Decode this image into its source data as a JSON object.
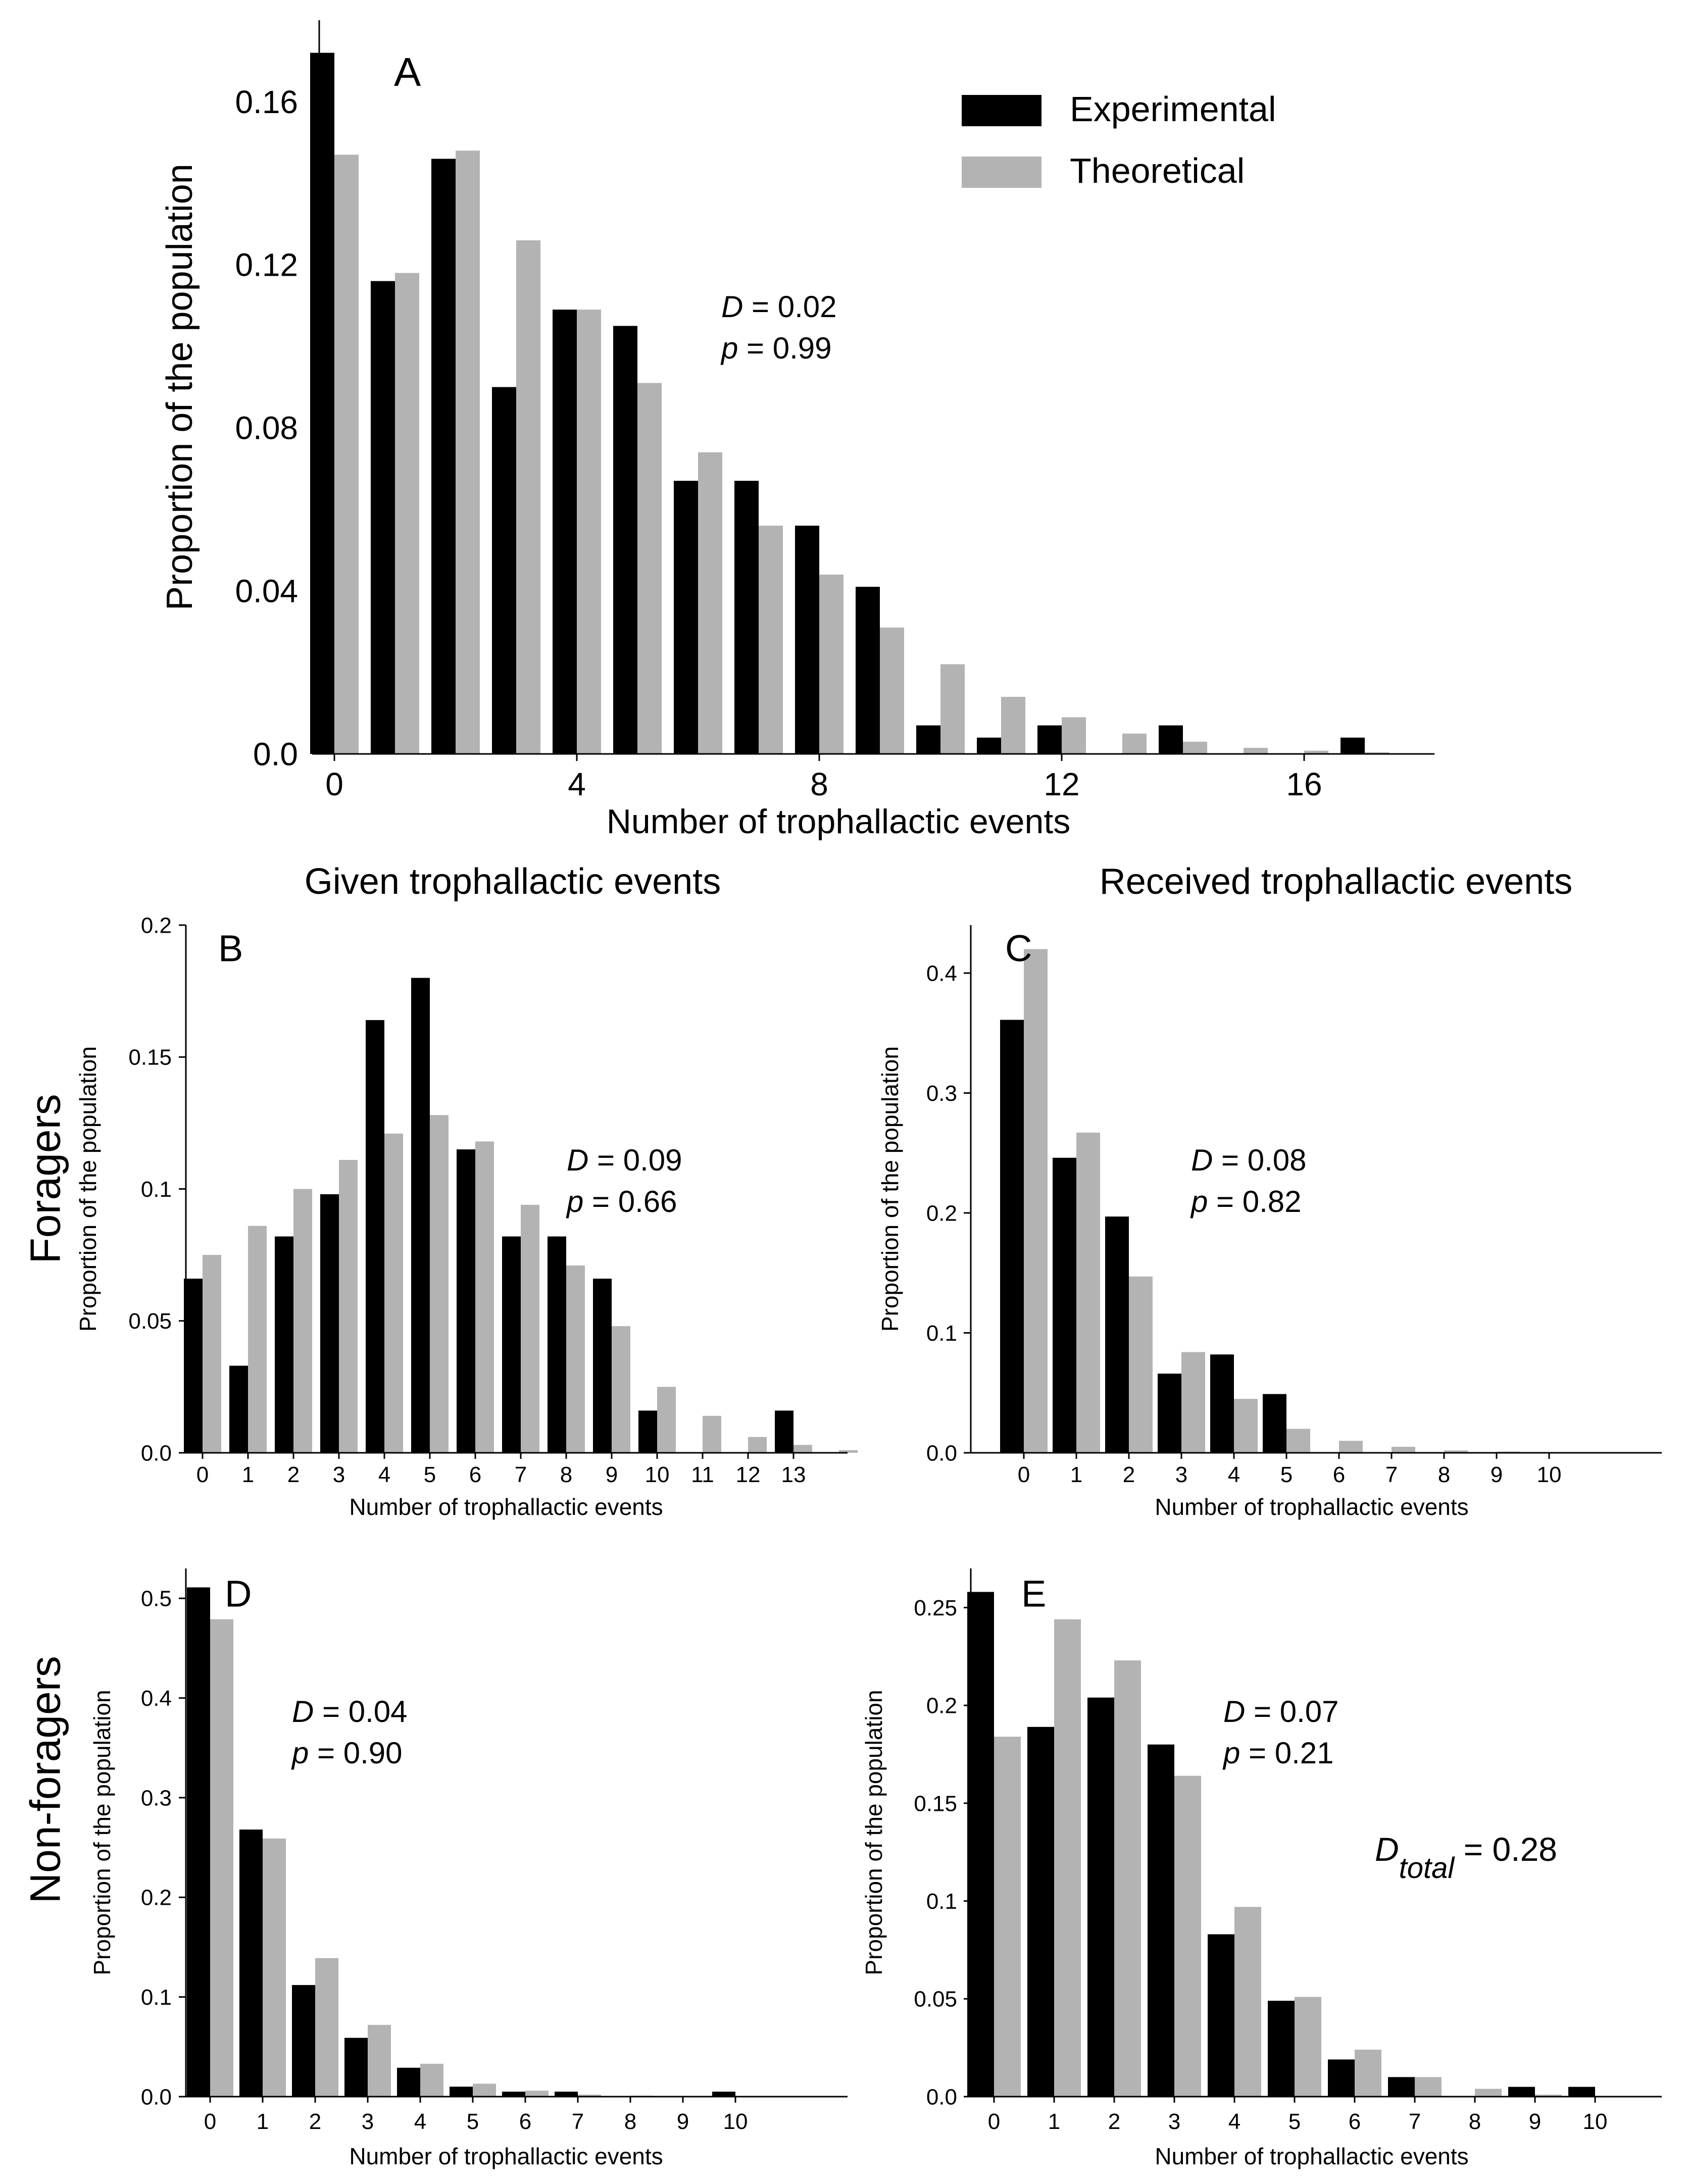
{
  "figure": {
    "column_titles": [
      "Given trophallactic events",
      "Received trophallactic events"
    ],
    "row_labels": [
      "Foragers",
      "Non-foragers"
    ],
    "d_total": {
      "main": "D",
      "sub": "total",
      "value": " = 0.28"
    }
  },
  "chart_data": [
    {
      "id": "A",
      "type": "bar",
      "panel_label": "A",
      "xlabel": "Number of trophallactic events",
      "ylabel": "Proportion of the population",
      "categories": [
        0,
        1,
        2,
        3,
        4,
        5,
        6,
        7,
        8,
        9,
        10,
        11,
        12,
        13,
        14,
        15,
        16,
        17
      ],
      "xticks": [
        0,
        4,
        8,
        12,
        16
      ],
      "ylim": [
        0,
        0.18
      ],
      "yticks": [
        0,
        0.04,
        0.08,
        0.12,
        0.16
      ],
      "ytick_labels": [
        "0.0",
        "0.04",
        "0.08",
        "0.12",
        "0.16"
      ],
      "series": [
        {
          "name": "Experimental",
          "color": "#000000",
          "values": [
            0.172,
            0.116,
            0.146,
            0.09,
            0.109,
            0.105,
            0.067,
            0.067,
            0.056,
            0.041,
            0.007,
            0.004,
            0.007,
            0.0,
            0.007,
            0.0,
            0.0,
            0.004
          ]
        },
        {
          "name": "Theoretical",
          "color": "#b3b3b3",
          "values": [
            0.147,
            0.118,
            0.148,
            0.126,
            0.109,
            0.091,
            0.074,
            0.056,
            0.044,
            0.031,
            0.022,
            0.014,
            0.009,
            0.005,
            0.003,
            0.0015,
            0.0008,
            0.0004
          ]
        }
      ],
      "legend": "top-right",
      "stats": {
        "d_label": "D",
        "d_value": " = 0.02",
        "p_label": "p",
        "p_value": " = 0.99"
      }
    },
    {
      "id": "B",
      "type": "bar",
      "panel_label": "B",
      "xlabel": "Number of trophallactic events",
      "ylabel": "Proportion of the population",
      "categories": [
        0,
        1,
        2,
        3,
        4,
        5,
        6,
        7,
        8,
        9,
        10,
        11,
        12,
        13,
        14
      ],
      "xtick_labels": [
        "0",
        "1",
        "2",
        "3",
        "4",
        "5",
        "6",
        "7",
        "8",
        "9",
        "10",
        "11",
        "12",
        "13"
      ],
      "ylim": [
        0,
        0.2
      ],
      "yticks": [
        0,
        0.05,
        0.1,
        0.15,
        0.2
      ],
      "ytick_labels": [
        "0.0",
        "0.05",
        "0.1",
        "0.15",
        "0.2"
      ],
      "series": [
        {
          "name": "Experimental",
          "color": "#000000",
          "values": [
            0.066,
            0.033,
            0.082,
            0.098,
            0.164,
            0.18,
            0.115,
            0.082,
            0.082,
            0.066,
            0.016,
            0.0,
            0.0,
            0.016,
            0.0
          ]
        },
        {
          "name": "Theoretical",
          "color": "#b3b3b3",
          "values": [
            0.075,
            0.086,
            0.1,
            0.111,
            0.121,
            0.128,
            0.118,
            0.094,
            0.071,
            0.048,
            0.025,
            0.014,
            0.006,
            0.003,
            0.001
          ]
        }
      ],
      "stats": {
        "d_label": "D",
        "d_value": " = 0.09",
        "p_label": "p",
        "p_value": " = 0.66"
      }
    },
    {
      "id": "C",
      "type": "bar",
      "panel_label": "C",
      "xlabel": "Number of trophallactic events",
      "ylabel": "Proportion of the population",
      "categories": [
        0,
        1,
        2,
        3,
        4,
        5,
        6,
        7,
        8,
        9,
        10
      ],
      "xtick_labels": [
        "0",
        "1",
        "2",
        "3",
        "4",
        "5",
        "6",
        "7",
        "8",
        "9",
        "10"
      ],
      "ylim": [
        0,
        0.44
      ],
      "yticks": [
        0,
        0.1,
        0.2,
        0.3,
        0.4
      ],
      "ytick_labels": [
        "0.0",
        "0.1",
        "0.2",
        "0.3",
        "0.4"
      ],
      "series": [
        {
          "name": "Experimental",
          "color": "#000000",
          "values": [
            0.361,
            0.246,
            0.197,
            0.066,
            0.082,
            0.049,
            0.0,
            0.0,
            0.0,
            0.0,
            0.0
          ]
        },
        {
          "name": "Theoretical",
          "color": "#b3b3b3",
          "values": [
            0.42,
            0.267,
            0.147,
            0.084,
            0.045,
            0.02,
            0.01,
            0.005,
            0.002,
            0.001,
            0.0005
          ]
        }
      ],
      "stats": {
        "d_label": "D",
        "d_value": " = 0.08",
        "p_label": "p",
        "p_value": " = 0.82"
      }
    },
    {
      "id": "D",
      "type": "bar",
      "panel_label": "D",
      "xlabel": "Number of trophallactic events",
      "ylabel": "Proportion of the population",
      "categories": [
        0,
        1,
        2,
        3,
        4,
        5,
        6,
        7,
        8,
        9,
        10
      ],
      "xtick_labels": [
        "0",
        "1",
        "2",
        "3",
        "4",
        "5",
        "6",
        "7",
        "8",
        "9",
        "10"
      ],
      "ylim": [
        0,
        0.53
      ],
      "yticks": [
        0,
        0.1,
        0.2,
        0.3,
        0.4,
        0.5
      ],
      "ytick_labels": [
        "0.0",
        "0.1",
        "0.2",
        "0.3",
        "0.4",
        "0.5"
      ],
      "series": [
        {
          "name": "Experimental",
          "color": "#000000",
          "values": [
            0.511,
            0.268,
            0.112,
            0.059,
            0.029,
            0.01,
            0.005,
            0.005,
            0.0,
            0.0,
            0.005
          ]
        },
        {
          "name": "Theoretical",
          "color": "#b3b3b3",
          "values": [
            0.479,
            0.259,
            0.139,
            0.072,
            0.033,
            0.013,
            0.006,
            0.002,
            0.001,
            0.0,
            0.0
          ]
        }
      ],
      "stats": {
        "d_label": "D",
        "d_value": " = 0.04",
        "p_label": "p",
        "p_value": " = 0.90"
      }
    },
    {
      "id": "E",
      "type": "bar",
      "panel_label": "E",
      "xlabel": "Number of trophallactic events",
      "ylabel": "Proportion of the population",
      "categories": [
        0,
        1,
        2,
        3,
        4,
        5,
        6,
        7,
        8,
        9,
        10
      ],
      "xtick_labels": [
        "0",
        "1",
        "2",
        "3",
        "4",
        "5",
        "6",
        "7",
        "8",
        "9",
        "10"
      ],
      "ylim": [
        0,
        0.27
      ],
      "yticks": [
        0,
        0.05,
        0.1,
        0.15,
        0.2,
        0.25
      ],
      "ytick_labels": [
        "0.0",
        "0.05",
        "0.1",
        "0.15",
        "0.2",
        "0.25"
      ],
      "series": [
        {
          "name": "Experimental",
          "color": "#000000",
          "values": [
            0.258,
            0.189,
            0.204,
            0.18,
            0.083,
            0.049,
            0.019,
            0.01,
            0.0,
            0.005,
            0.005
          ]
        },
        {
          "name": "Theoretical",
          "color": "#b3b3b3",
          "values": [
            0.184,
            0.244,
            0.223,
            0.164,
            0.097,
            0.051,
            0.024,
            0.01,
            0.004,
            0.001,
            0.0
          ]
        }
      ],
      "stats": {
        "d_label": "D",
        "d_value": " = 0.07",
        "p_label": "p",
        "p_value": " = 0.21"
      }
    }
  ]
}
